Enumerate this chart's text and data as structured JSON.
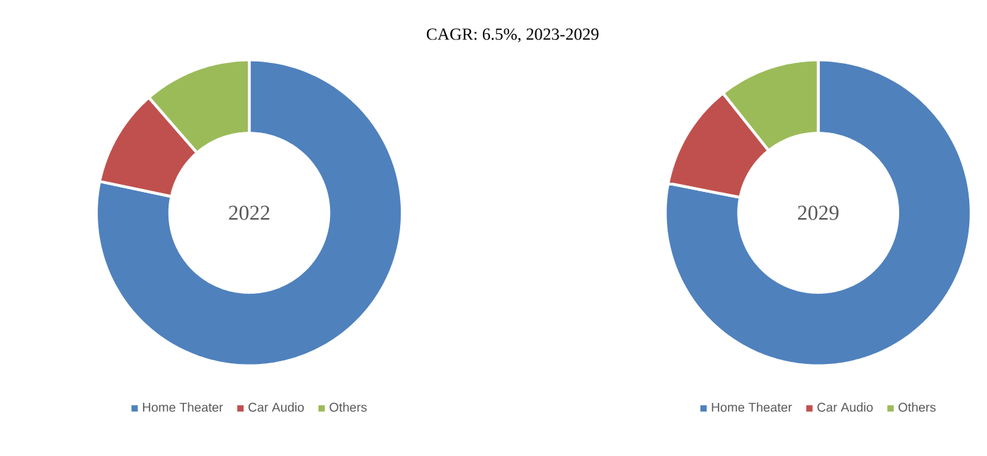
{
  "chart_data": [
    {
      "type": "donut",
      "title": "CAGR: 6.5%, 2023-2029",
      "annotations": [
        "2022"
      ],
      "categories": [
        "Home Theater",
        "Car Audio",
        "Others"
      ],
      "values": [
        78.3,
        10.3,
        11.4
      ],
      "colors": [
        "#4f81bd",
        "#c0504d",
        "#9bbb59"
      ],
      "legend": "bottom"
    },
    {
      "type": "donut",
      "annotations": [
        "2029"
      ],
      "categories": [
        "Home Theater",
        "Car Audio",
        "Others"
      ],
      "values": [
        78.1,
        11.2,
        10.7
      ],
      "colors": [
        "#4f81bd",
        "#c0504d",
        "#9bbb59"
      ],
      "legend": "bottom"
    }
  ]
}
